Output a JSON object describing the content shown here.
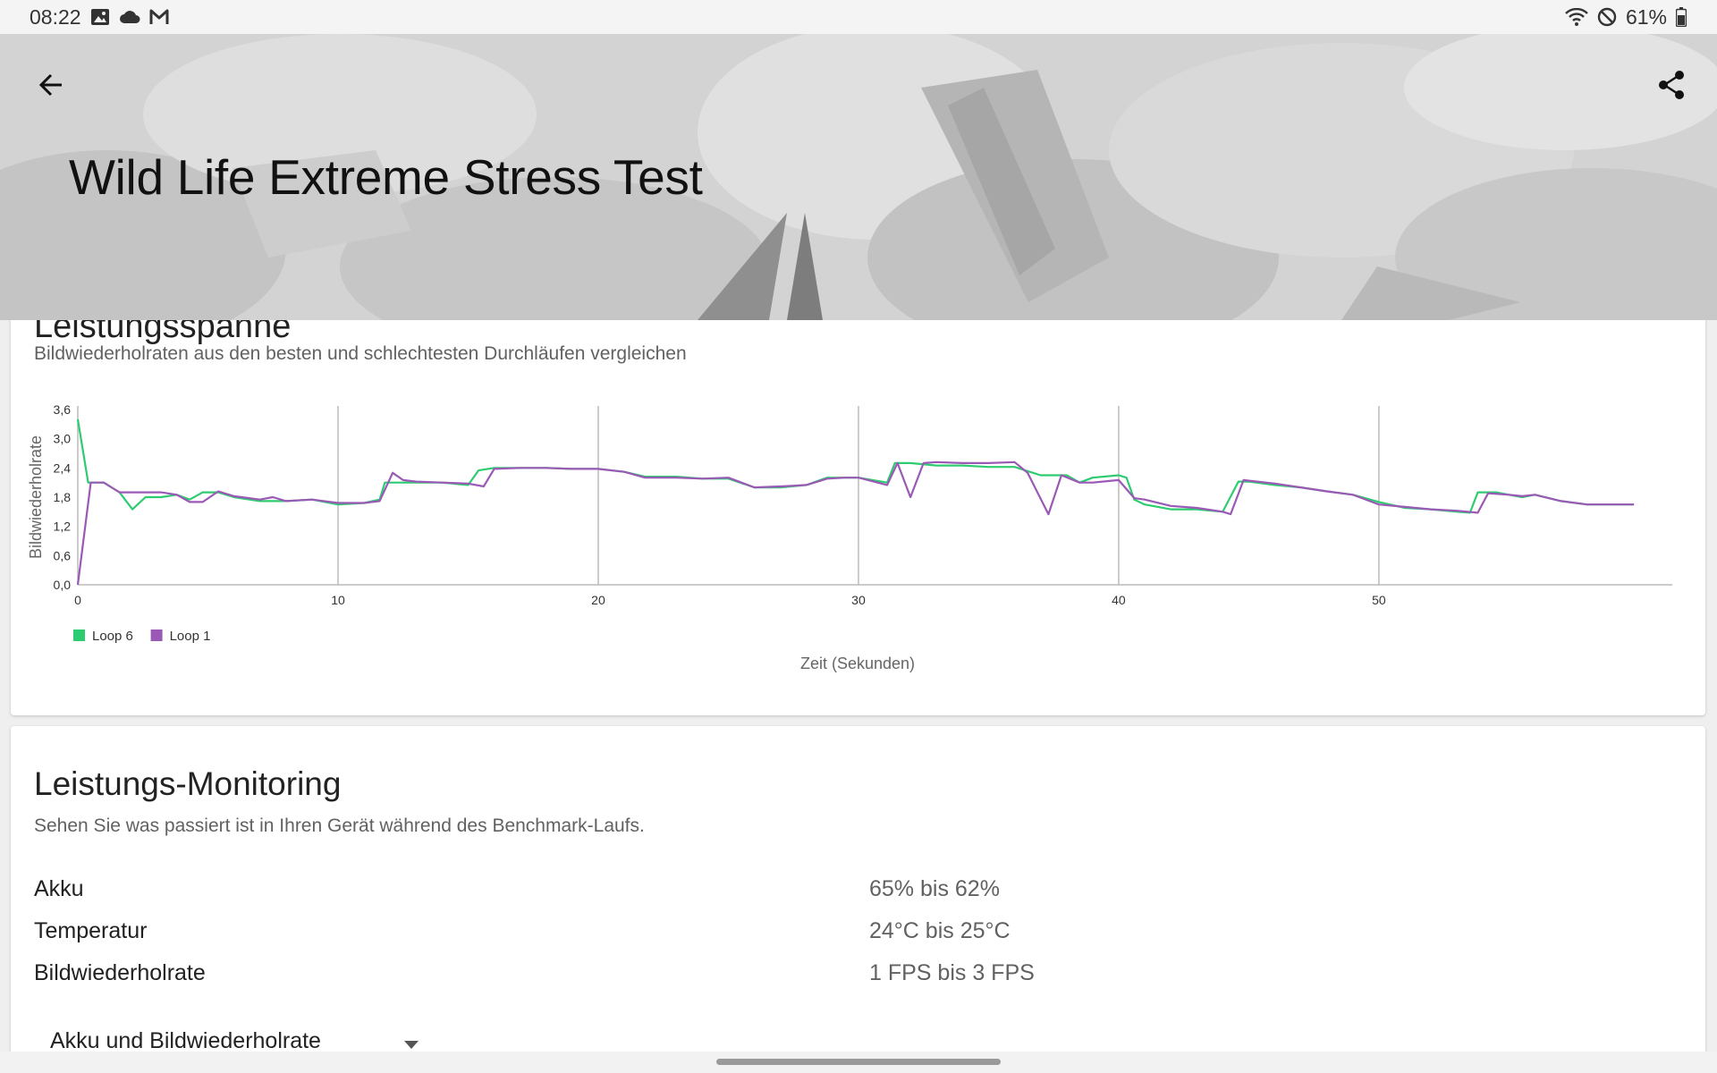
{
  "status_bar": {
    "time": "08:22",
    "left_icons": [
      "image-icon",
      "cloud-icon",
      "gmail-icon"
    ],
    "right_icons": [
      "wifi-icon",
      "do-not-disturb-icon",
      "battery-icon"
    ],
    "battery": "61%"
  },
  "header": {
    "title": "Wild Life Extreme Stress Test",
    "back_icon": "arrow-left-icon",
    "share_icon": "share-icon"
  },
  "performance_card": {
    "title": "Leistungsspanne",
    "subtitle": "Bildwiederholraten aus den besten und schlechtesten Durchläufen vergleichen"
  },
  "chart_data": {
    "type": "line",
    "xlabel": "Zeit (Sekunden)",
    "ylabel": "Bildwiederholrate",
    "xlim": [
      0,
      60
    ],
    "ylim": [
      0,
      3.6
    ],
    "x_ticks": [
      "0",
      "10",
      "20",
      "30",
      "40",
      "50"
    ],
    "y_ticks": [
      "0,0",
      "0,6",
      "1,2",
      "1,8",
      "2,4",
      "3,0",
      "3,6"
    ],
    "legend_position": "bottom-left",
    "grid": "vertical",
    "series": [
      {
        "name": "Loop 6",
        "color": "#2ecc71",
        "points": [
          [
            0,
            3.4
          ],
          [
            0.4,
            2.1
          ],
          [
            1,
            2.1
          ],
          [
            1.6,
            1.9
          ],
          [
            2.1,
            1.55
          ],
          [
            2.6,
            1.8
          ],
          [
            3.2,
            1.8
          ],
          [
            3.8,
            1.85
          ],
          [
            4.3,
            1.75
          ],
          [
            4.8,
            1.9
          ],
          [
            5.4,
            1.9
          ],
          [
            6,
            1.8
          ],
          [
            7,
            1.72
          ],
          [
            8,
            1.72
          ],
          [
            9,
            1.75
          ],
          [
            10,
            1.65
          ],
          [
            11,
            1.68
          ],
          [
            11.6,
            1.75
          ],
          [
            11.8,
            2.1
          ],
          [
            12.2,
            2.1
          ],
          [
            13,
            2.1
          ],
          [
            14,
            2.1
          ],
          [
            15,
            2.05
          ],
          [
            15.4,
            2.35
          ],
          [
            16,
            2.4
          ],
          [
            17,
            2.4
          ],
          [
            18,
            2.4
          ],
          [
            19,
            2.38
          ],
          [
            20,
            2.38
          ],
          [
            21,
            2.32
          ],
          [
            21.8,
            2.22
          ],
          [
            23,
            2.22
          ],
          [
            24,
            2.18
          ],
          [
            25,
            2.18
          ],
          [
            26,
            2.0
          ],
          [
            27,
            2.0
          ],
          [
            28,
            2.05
          ],
          [
            28.8,
            2.2
          ],
          [
            29.5,
            2.2
          ],
          [
            30,
            2.2
          ],
          [
            31.1,
            2.1
          ],
          [
            31.4,
            2.5
          ],
          [
            32,
            2.5
          ],
          [
            33,
            2.45
          ],
          [
            34,
            2.45
          ],
          [
            35,
            2.42
          ],
          [
            36,
            2.42
          ],
          [
            37,
            2.25
          ],
          [
            38,
            2.25
          ],
          [
            38.5,
            2.1
          ],
          [
            39,
            2.2
          ],
          [
            40,
            2.25
          ],
          [
            40.3,
            2.2
          ],
          [
            40.6,
            1.75
          ],
          [
            41,
            1.65
          ],
          [
            42,
            1.55
          ],
          [
            43,
            1.55
          ],
          [
            44,
            1.5
          ],
          [
            44.6,
            2.12
          ],
          [
            45,
            2.12
          ],
          [
            46,
            2.05
          ],
          [
            47,
            2.0
          ],
          [
            48,
            1.92
          ],
          [
            49,
            1.85
          ],
          [
            50,
            1.7
          ],
          [
            51,
            1.58
          ],
          [
            52,
            1.55
          ],
          [
            53,
            1.5
          ],
          [
            53.5,
            1.48
          ],
          [
            53.8,
            1.9
          ],
          [
            54.5,
            1.9
          ],
          [
            55,
            1.85
          ],
          [
            55.5,
            1.8
          ],
          [
            56,
            1.85
          ],
          [
            57,
            1.72
          ],
          [
            58,
            1.65
          ],
          [
            59,
            1.65
          ],
          [
            59.8,
            1.65
          ]
        ]
      },
      {
        "name": "Loop 1",
        "color": "#9b59b6",
        "points": [
          [
            0,
            0
          ],
          [
            0.5,
            2.1
          ],
          [
            1,
            2.1
          ],
          [
            1.6,
            1.9
          ],
          [
            2.5,
            1.9
          ],
          [
            3.2,
            1.9
          ],
          [
            3.8,
            1.85
          ],
          [
            4.3,
            1.7
          ],
          [
            4.8,
            1.7
          ],
          [
            5.4,
            1.92
          ],
          [
            6,
            1.82
          ],
          [
            7,
            1.75
          ],
          [
            7.5,
            1.8
          ],
          [
            8,
            1.72
          ],
          [
            9,
            1.75
          ],
          [
            10,
            1.68
          ],
          [
            11,
            1.68
          ],
          [
            11.6,
            1.72
          ],
          [
            12.1,
            2.3
          ],
          [
            12.5,
            2.15
          ],
          [
            13,
            2.12
          ],
          [
            14,
            2.1
          ],
          [
            15,
            2.08
          ],
          [
            15.6,
            2.02
          ],
          [
            16,
            2.38
          ],
          [
            17,
            2.4
          ],
          [
            18,
            2.4
          ],
          [
            19,
            2.38
          ],
          [
            20,
            2.38
          ],
          [
            21,
            2.32
          ],
          [
            21.8,
            2.2
          ],
          [
            23,
            2.2
          ],
          [
            24,
            2.18
          ],
          [
            25,
            2.2
          ],
          [
            26,
            2.0
          ],
          [
            27,
            2.02
          ],
          [
            28,
            2.05
          ],
          [
            28.8,
            2.18
          ],
          [
            29.5,
            2.2
          ],
          [
            30,
            2.2
          ],
          [
            31.1,
            2.05
          ],
          [
            31.5,
            2.5
          ],
          [
            32,
            1.8
          ],
          [
            32.5,
            2.5
          ],
          [
            33,
            2.52
          ],
          [
            34,
            2.5
          ],
          [
            35,
            2.5
          ],
          [
            36,
            2.52
          ],
          [
            36.5,
            2.3
          ],
          [
            37.3,
            1.45
          ],
          [
            37.8,
            2.25
          ],
          [
            38.5,
            2.1
          ],
          [
            39,
            2.1
          ],
          [
            40,
            2.15
          ],
          [
            40.6,
            1.78
          ],
          [
            41,
            1.75
          ],
          [
            42,
            1.62
          ],
          [
            43,
            1.58
          ],
          [
            44,
            1.5
          ],
          [
            44.3,
            1.45
          ],
          [
            44.8,
            2.15
          ],
          [
            46,
            2.08
          ],
          [
            47,
            2.0
          ],
          [
            48,
            1.92
          ],
          [
            49,
            1.85
          ],
          [
            50,
            1.65
          ],
          [
            51,
            1.6
          ],
          [
            52,
            1.55
          ],
          [
            53,
            1.52
          ],
          [
            53.8,
            1.48
          ],
          [
            54.2,
            1.88
          ],
          [
            55,
            1.85
          ],
          [
            55.5,
            1.82
          ],
          [
            56,
            1.85
          ],
          [
            57,
            1.72
          ],
          [
            58,
            1.65
          ],
          [
            59,
            1.65
          ],
          [
            59.8,
            1.65
          ]
        ]
      }
    ]
  },
  "monitoring_card": {
    "title": "Leistungs-Monitoring",
    "subtitle": "Sehen Sie was passiert ist in Ihren Gerät während des Benchmark-Laufs.",
    "rows": [
      {
        "label": "Akku",
        "value": "65% bis 62%"
      },
      {
        "label": "Temperatur",
        "value": "24°C bis 25°C"
      },
      {
        "label": "Bildwiederholrate",
        "value": "1 FPS bis 3 FPS"
      }
    ],
    "dropdown": {
      "selected": "Akku und Bildwiederholrate",
      "icon": "dropdown-arrow-icon"
    }
  }
}
